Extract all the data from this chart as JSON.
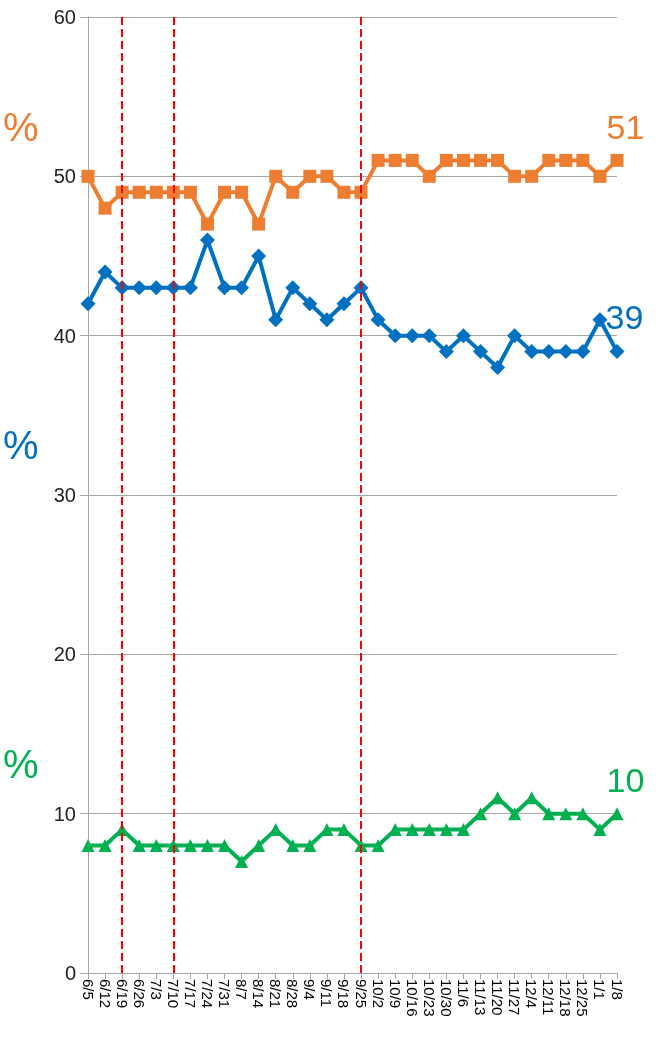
{
  "chart_data": {
    "type": "line",
    "categories": [
      "6/5",
      "6/12",
      "6/19",
      "6/26",
      "7/3",
      "7/10",
      "7/17",
      "7/24",
      "7/31",
      "8/7",
      "8/14",
      "8/21",
      "8/28",
      "9/4",
      "9/11",
      "9/18",
      "9/25",
      "10/2",
      "10/9",
      "10/16",
      "10/23",
      "10/30",
      "11/6",
      "11/13",
      "11/20",
      "11/27",
      "12/4",
      "12/11",
      "12/18",
      "12/25",
      "1/1",
      "1/8"
    ],
    "series": [
      {
        "color": "#ed7d31",
        "marker": "square",
        "values": [
          50,
          48,
          49,
          49,
          49,
          49,
          49,
          47,
          49,
          49,
          47,
          50,
          49,
          50,
          50,
          49,
          49,
          51,
          51,
          51,
          50,
          51,
          51,
          51,
          51,
          50,
          50,
          51,
          51,
          51,
          50,
          51
        ],
        "value_labels": [
          null,
          null,
          null,
          null,
          null,
          null,
          null,
          null,
          null,
          null,
          null,
          null,
          null,
          null,
          null,
          null,
          null,
          null,
          null,
          null,
          null,
          null,
          null,
          null,
          null,
          null,
          null,
          null,
          null,
          null,
          null,
          "51"
        ]
      },
      {
        "color": "#0070c0",
        "marker": "diamond",
        "values": [
          42,
          44,
          43,
          43,
          43,
          43,
          43,
          46,
          43,
          43,
          45,
          41,
          43,
          42,
          41,
          42,
          43,
          41,
          40,
          40,
          40,
          39,
          40,
          39,
          38,
          40,
          39,
          39,
          39,
          39,
          41,
          39
        ],
        "value_labels": [
          null,
          null,
          null,
          null,
          null,
          null,
          null,
          null,
          null,
          null,
          null,
          null,
          null,
          null,
          null,
          null,
          null,
          null,
          null,
          null,
          null,
          null,
          null,
          null,
          null,
          null,
          null,
          null,
          null,
          null,
          null,
          "39"
        ]
      },
      {
        "color": "#00b050",
        "marker": "triangle",
        "values": [
          8,
          8,
          9,
          8,
          8,
          8,
          8,
          8,
          8,
          7,
          8,
          9,
          8,
          8,
          9,
          9,
          8,
          8,
          9,
          9,
          9,
          9,
          9,
          10,
          11,
          10,
          11,
          10,
          10,
          10,
          9,
          10
        ],
        "value_labels": [
          null,
          null,
          null,
          null,
          null,
          null,
          null,
          null,
          null,
          null,
          null,
          null,
          null,
          null,
          null,
          null,
          null,
          null,
          null,
          null,
          null,
          null,
          null,
          null,
          null,
          null,
          null,
          null,
          null,
          null,
          null,
          "10"
        ]
      }
    ],
    "annotations": [
      "%",
      "%",
      "%"
    ],
    "ref_lines": [
      {
        "axis": "x",
        "value": "6/19",
        "color": "#ff0000",
        "line_style": "dashed"
      },
      {
        "axis": "x",
        "value": "7/10",
        "color": "#ff0000",
        "line_style": "dashed"
      },
      {
        "axis": "x",
        "value": "9/25",
        "color": "#ff0000",
        "line_style": "dashed"
      }
    ],
    "ylim": [
      0,
      60
    ],
    "yticks": [
      0,
      10,
      20,
      30,
      40,
      50,
      60
    ],
    "grid": "y",
    "line_style": "solid"
  }
}
